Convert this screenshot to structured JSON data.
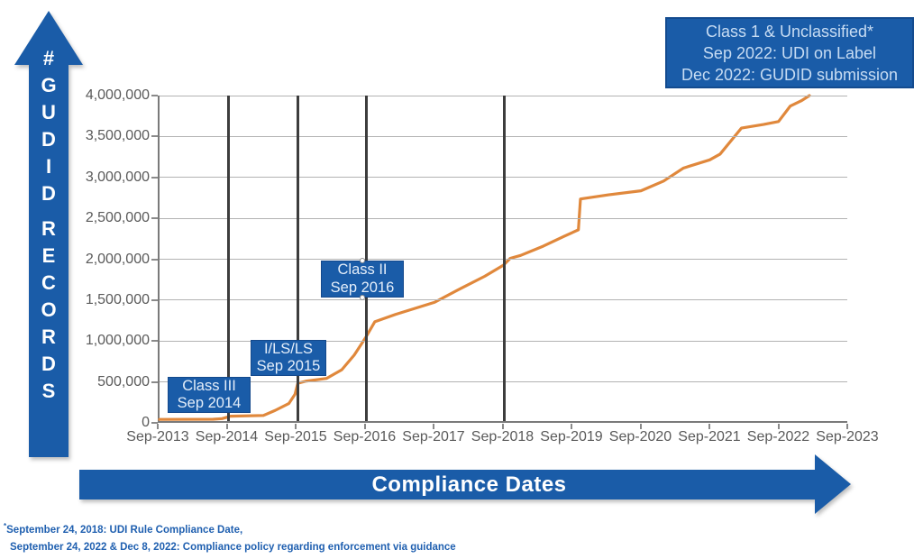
{
  "colors": {
    "brand_blue": "#1A5CA8",
    "line_orange": "#E0883C",
    "grid_gray": "#b3b3b3",
    "event_line_gray": "#3d3d3d",
    "axis_text_gray": "#5a5a5a",
    "footnote_blue": "#2060B0"
  },
  "icons": {
    "y_axis_arrow": "up-arrow",
    "x_axis_arrow": "right-arrow"
  },
  "y_axis_arrow": {
    "symbol": "#",
    "word1": "GUDID",
    "word2": "RECORDS"
  },
  "x_axis_arrow": {
    "label": "Compliance Dates"
  },
  "top_right_box": {
    "line1": "Class 1 & Unclassified*",
    "line2": "Sep 2022: UDI on Label",
    "line3": "Dec 2022: GUDID submission"
  },
  "callouts": [
    {
      "line1": "Class III",
      "line2": "Sep 2014"
    },
    {
      "line1": "I/LS/LS",
      "line2": "Sep 2015"
    },
    {
      "line1": "Class II",
      "line2": "Sep 2016"
    }
  ],
  "footnote": {
    "marker": "*",
    "line1": "September 24, 2018: UDI Rule Compliance Date,",
    "line2": "September 24, 2022 & Dec 8, 2022: Compliance policy regarding enforcement via guidance"
  },
  "chart_data": {
    "type": "line",
    "title": "",
    "xlabel": "Compliance Dates",
    "ylabel": "# GUDID RECORDS",
    "grid": true,
    "legend": "none",
    "ylim": [
      0,
      4000000
    ],
    "x_range_years": [
      2013.67,
      2023.67
    ],
    "x_ticks": [
      "Sep-2013",
      "Sep-2014",
      "Sep-2015",
      "Sep-2016",
      "Sep-2017",
      "Sep-2018",
      "Sep-2019",
      "Sep-2020",
      "Sep-2021",
      "Sep-2022",
      "Sep-2023"
    ],
    "y_ticks": [
      "0",
      "500,000",
      "1,000,000",
      "1,500,000",
      "2,000,000",
      "2,500,000",
      "3,000,000",
      "3,500,000",
      "4,000,000"
    ],
    "event_lines_years": [
      2014.67,
      2015.67,
      2016.67,
      2018.67
    ],
    "event_line_meanings": [
      "Class III Sep 2014",
      "I/LS/LS Sep 2015",
      "Class II Sep 2016",
      "Sep 2018 UDI Rule Compliance Date"
    ],
    "series": [
      {
        "name": "GUDID records",
        "color": "#E0883C",
        "points": [
          [
            2013.67,
            20000
          ],
          [
            2014.45,
            22000
          ],
          [
            2014.58,
            30000
          ],
          [
            2014.7,
            60000
          ],
          [
            2015.18,
            68000
          ],
          [
            2015.35,
            130000
          ],
          [
            2015.55,
            215000
          ],
          [
            2015.64,
            330000
          ],
          [
            2015.68,
            465000
          ],
          [
            2015.8,
            490000
          ],
          [
            2016.1,
            525000
          ],
          [
            2016.32,
            630000
          ],
          [
            2016.5,
            810000
          ],
          [
            2016.67,
            1030000
          ],
          [
            2016.8,
            1220000
          ],
          [
            2017.1,
            1310000
          ],
          [
            2017.67,
            1460000
          ],
          [
            2018.05,
            1630000
          ],
          [
            2018.4,
            1780000
          ],
          [
            2018.67,
            1915000
          ],
          [
            2018.77,
            2000000
          ],
          [
            2018.92,
            2035000
          ],
          [
            2019.25,
            2150000
          ],
          [
            2019.55,
            2270000
          ],
          [
            2019.76,
            2350000
          ],
          [
            2019.79,
            2730000
          ],
          [
            2020.2,
            2780000
          ],
          [
            2020.67,
            2830000
          ],
          [
            2021.0,
            2950000
          ],
          [
            2021.29,
            3110000
          ],
          [
            2021.67,
            3210000
          ],
          [
            2021.82,
            3280000
          ],
          [
            2022.13,
            3600000
          ],
          [
            2022.45,
            3645000
          ],
          [
            2022.67,
            3680000
          ],
          [
            2022.84,
            3870000
          ],
          [
            2023.0,
            3935000
          ],
          [
            2023.12,
            4000000
          ]
        ]
      }
    ]
  }
}
